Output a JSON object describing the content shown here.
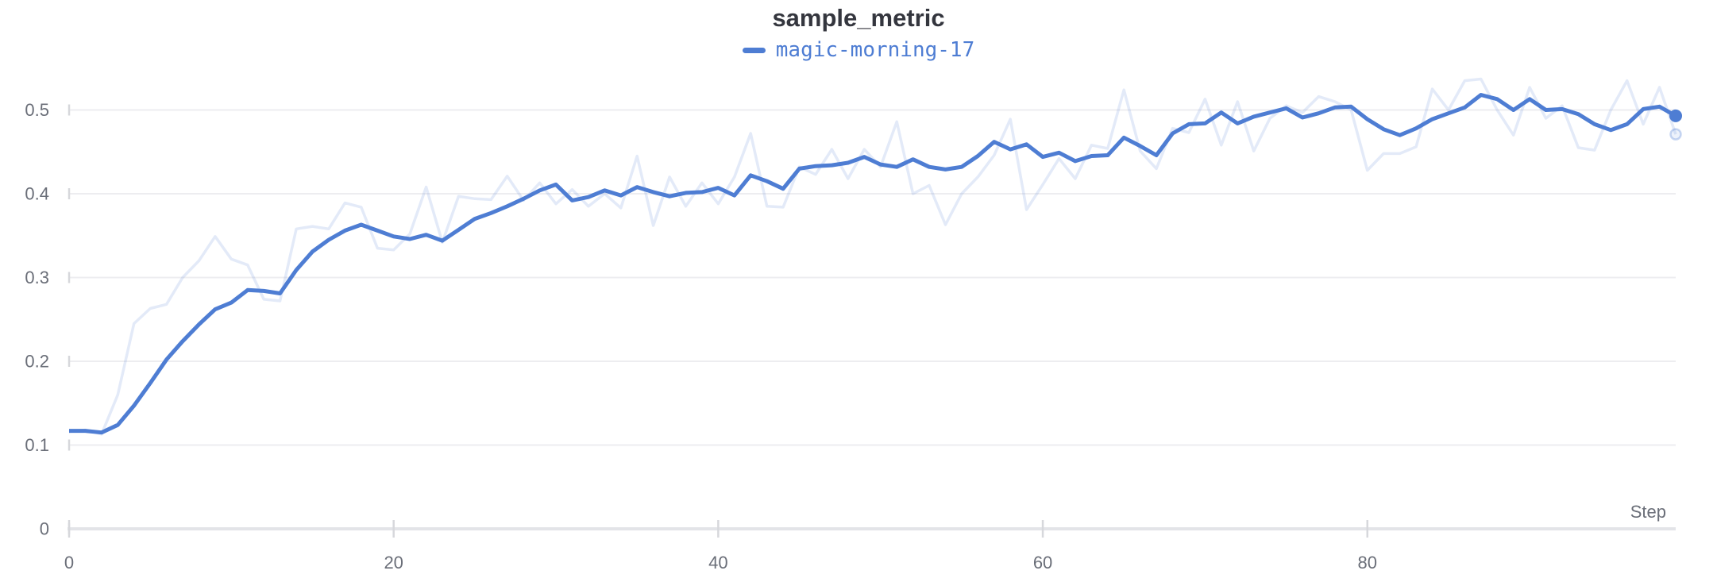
{
  "header": {
    "title": "sample_metric"
  },
  "legend": {
    "series_label": "magic-morning-17"
  },
  "axis": {
    "x_title": "Step"
  },
  "colors": {
    "accent": "#4e7dd3",
    "raw_line": "rgba(78,125,211,0.16)",
    "raw_dot_fill": "rgba(78,125,211,0.10)",
    "raw_dot_stroke": "rgba(78,125,211,0.30)",
    "title_text": "#34363e",
    "tick_text": "#6a6e78",
    "gridline": "#ededf0",
    "axis_line": "#e3e4e8",
    "tick_mark": "#d7d8dc",
    "background": "#ffffff"
  },
  "chart_data": {
    "type": "line",
    "title": "sample_metric",
    "xlabel": "Step",
    "ylabel": "",
    "grid": "horizontal",
    "legend_position": "top-center",
    "x": {
      "start": 0,
      "end": 99,
      "step": 1
    },
    "xlim": [
      0,
      99
    ],
    "ylim": [
      0,
      0.55
    ],
    "x_ticks": [
      {
        "label": "0",
        "value": 0
      },
      {
        "label": "20",
        "value": 20
      },
      {
        "label": "40",
        "value": 40
      },
      {
        "label": "60",
        "value": 60
      },
      {
        "label": "80",
        "value": 80
      }
    ],
    "y_ticks": [
      {
        "label": "0",
        "value": 0
      },
      {
        "label": "0.1",
        "value": 0.1
      },
      {
        "label": "0.2",
        "value": 0.2
      },
      {
        "label": "0.3",
        "value": 0.3
      },
      {
        "label": "0.4",
        "value": 0.4
      },
      {
        "label": "0.5",
        "value": 0.5
      }
    ],
    "series": [
      {
        "name": "magic-morning-17 (original)",
        "role": "raw",
        "values": [
          0.116,
          0.118,
          0.113,
          0.16,
          0.245,
          0.263,
          0.268,
          0.3,
          0.32,
          0.349,
          0.322,
          0.315,
          0.274,
          0.272,
          0.358,
          0.361,
          0.358,
          0.389,
          0.384,
          0.335,
          0.333,
          0.352,
          0.408,
          0.342,
          0.397,
          0.394,
          0.393,
          0.421,
          0.392,
          0.413,
          0.388,
          0.405,
          0.385,
          0.4,
          0.383,
          0.445,
          0.362,
          0.42,
          0.385,
          0.413,
          0.388,
          0.42,
          0.472,
          0.385,
          0.384,
          0.432,
          0.423,
          0.453,
          0.418,
          0.453,
          0.432,
          0.486,
          0.4,
          0.41,
          0.363,
          0.4,
          0.42,
          0.446,
          0.489,
          0.381,
          0.411,
          0.442,
          0.418,
          0.458,
          0.454,
          0.524,
          0.451,
          0.43,
          0.478,
          0.473,
          0.513,
          0.458,
          0.51,
          0.451,
          0.49,
          0.505,
          0.497,
          0.516,
          0.51,
          0.5,
          0.428,
          0.448,
          0.448,
          0.456,
          0.525,
          0.5,
          0.535,
          0.537,
          0.5,
          0.47,
          0.527,
          0.49,
          0.505,
          0.455,
          0.452,
          0.5,
          0.535,
          0.483,
          0.527,
          0.471
        ]
      },
      {
        "name": "magic-morning-17",
        "role": "smoothed",
        "values": [
          0.117,
          0.117,
          0.115,
          0.124,
          0.147,
          0.174,
          0.202,
          0.224,
          0.244,
          0.262,
          0.27,
          0.285,
          0.284,
          0.281,
          0.309,
          0.331,
          0.345,
          0.356,
          0.363,
          0.356,
          0.349,
          0.346,
          0.351,
          0.344,
          0.357,
          0.37,
          0.377,
          0.385,
          0.394,
          0.404,
          0.411,
          0.392,
          0.396,
          0.404,
          0.398,
          0.408,
          0.402,
          0.397,
          0.401,
          0.402,
          0.407,
          0.398,
          0.422,
          0.415,
          0.406,
          0.43,
          0.433,
          0.434,
          0.437,
          0.444,
          0.435,
          0.432,
          0.441,
          0.432,
          0.429,
          0.432,
          0.445,
          0.462,
          0.453,
          0.459,
          0.444,
          0.449,
          0.439,
          0.445,
          0.446,
          0.467,
          0.457,
          0.446,
          0.472,
          0.483,
          0.484,
          0.497,
          0.484,
          0.492,
          0.497,
          0.502,
          0.491,
          0.496,
          0.503,
          0.504,
          0.489,
          0.477,
          0.47,
          0.478,
          0.489,
          0.496,
          0.503,
          0.518,
          0.513,
          0.5,
          0.513,
          0.5,
          0.501,
          0.495,
          0.483,
          0.476,
          0.483,
          0.501,
          0.504,
          0.493
        ]
      }
    ]
  }
}
